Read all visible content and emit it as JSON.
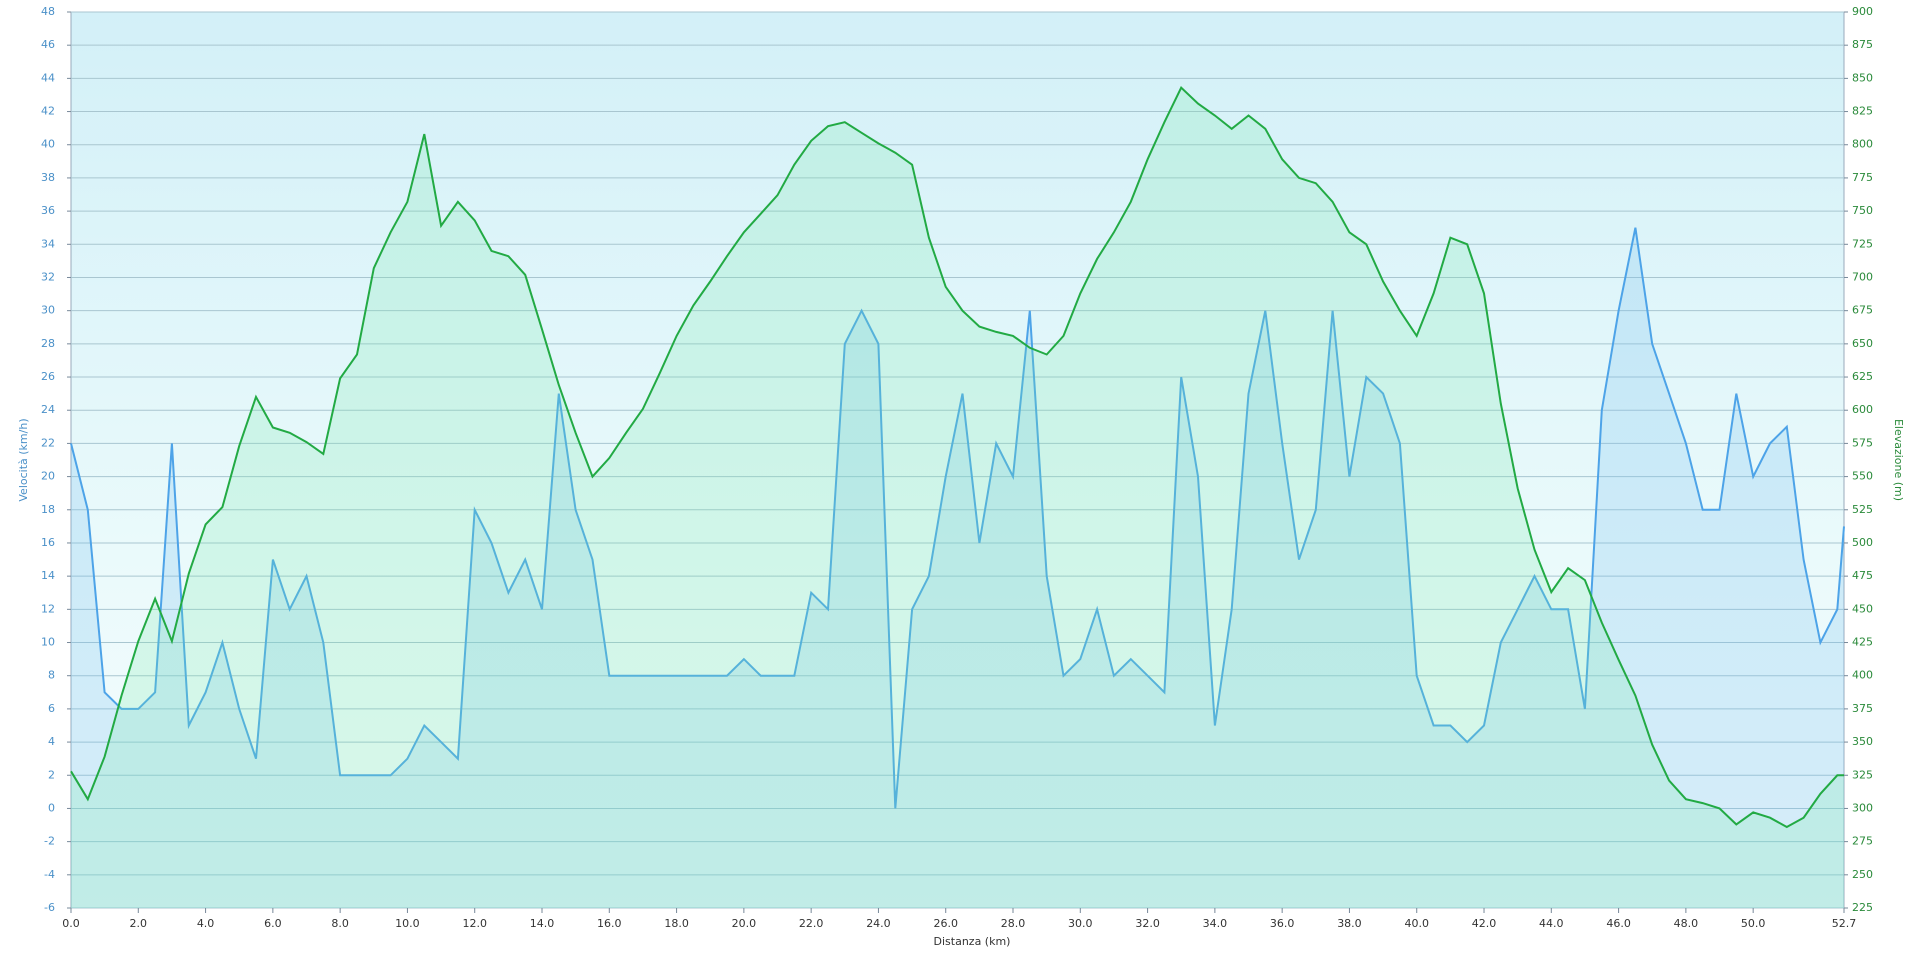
{
  "chart_data": {
    "type": "line",
    "xlabel": "Distanza  (km)",
    "ylabel": "Velocità (km/h)",
    "y2label": "Elevazione (m)",
    "xlim": [
      0,
      52.7
    ],
    "ylim": [
      -6,
      48
    ],
    "y2lim": [
      225,
      900
    ],
    "xticks": [
      {
        "value": 0,
        "label": "0.0"
      },
      {
        "value": 2,
        "label": "2.0"
      },
      {
        "value": 4,
        "label": "4.0"
      },
      {
        "value": 6,
        "label": "6.0"
      },
      {
        "value": 8,
        "label": "8.0"
      },
      {
        "value": 10,
        "label": "10.0"
      },
      {
        "value": 12,
        "label": "12.0"
      },
      {
        "value": 14,
        "label": "14.0"
      },
      {
        "value": 16,
        "label": "16.0"
      },
      {
        "value": 18,
        "label": "18.0"
      },
      {
        "value": 20,
        "label": "20.0"
      },
      {
        "value": 22,
        "label": "22.0"
      },
      {
        "value": 24,
        "label": "24.0"
      },
      {
        "value": 26,
        "label": "26.0"
      },
      {
        "value": 28,
        "label": "28.0"
      },
      {
        "value": 30,
        "label": "30.0"
      },
      {
        "value": 32,
        "label": "32.0"
      },
      {
        "value": 34,
        "label": "34.0"
      },
      {
        "value": 36,
        "label": "36.0"
      },
      {
        "value": 38,
        "label": "38.0"
      },
      {
        "value": 40,
        "label": "40.0"
      },
      {
        "value": 42,
        "label": "42.0"
      },
      {
        "value": 44,
        "label": "44.0"
      },
      {
        "value": 46,
        "label": "46.0"
      },
      {
        "value": 48,
        "label": "48.0"
      },
      {
        "value": 50,
        "label": "50.0"
      },
      {
        "value": 52.7,
        "label": "52.7"
      }
    ],
    "yticks": [
      -6,
      -4,
      -2,
      0,
      2,
      4,
      6,
      8,
      10,
      12,
      14,
      16,
      18,
      20,
      22,
      24,
      26,
      28,
      30,
      32,
      34,
      36,
      38,
      40,
      42,
      44,
      46,
      48
    ],
    "y2ticks": [
      225,
      250,
      275,
      300,
      325,
      350,
      375,
      400,
      425,
      450,
      475,
      500,
      525,
      550,
      575,
      600,
      625,
      650,
      675,
      700,
      725,
      750,
      775,
      800,
      825,
      850,
      875,
      900
    ],
    "grid": true,
    "x": [
      0,
      0.5,
      1,
      1.5,
      2,
      2.5,
      3,
      3.5,
      4,
      4.5,
      5,
      5.5,
      6,
      6.5,
      7,
      7.5,
      8,
      8.5,
      9,
      9.5,
      10,
      10.5,
      11,
      11.5,
      12,
      12.5,
      13,
      13.5,
      14,
      14.5,
      15,
      15.5,
      16,
      16.5,
      17,
      17.5,
      18,
      18.5,
      19,
      19.5,
      20,
      20.5,
      21,
      21.5,
      22,
      22.5,
      23,
      23.5,
      24,
      24.5,
      25,
      25.5,
      26,
      26.5,
      27,
      27.5,
      28,
      28.5,
      29,
      29.5,
      30,
      30.5,
      31,
      31.5,
      32,
      32.5,
      33,
      33.5,
      34,
      34.5,
      35,
      35.5,
      36,
      36.5,
      37,
      37.5,
      38,
      38.5,
      39,
      39.5,
      40,
      40.5,
      41,
      41.5,
      42,
      42.5,
      43,
      43.5,
      44,
      44.5,
      45,
      45.5,
      46,
      46.5,
      47,
      47.5,
      48,
      48.5,
      49,
      49.5,
      50,
      50.5,
      51,
      51.5,
      52,
      52.5,
      52.7
    ],
    "series": [
      {
        "color": "#4da3e8",
        "axis": "y",
        "values": [
          22,
          18,
          7,
          6,
          6,
          7,
          22,
          5,
          7,
          10,
          6,
          3,
          15,
          12,
          14,
          10,
          2,
          2,
          2,
          2,
          3,
          5,
          4,
          3,
          18,
          16,
          13,
          15,
          12,
          25,
          18,
          15,
          8,
          8,
          8,
          8,
          8,
          8,
          8,
          8,
          9,
          8,
          8,
          8,
          13,
          12,
          28,
          30,
          28,
          0,
          12,
          14,
          20,
          25,
          16,
          22,
          20,
          30,
          14,
          8,
          9,
          12,
          8,
          9,
          8,
          7,
          26,
          20,
          5,
          12,
          25,
          30,
          22,
          15,
          18,
          30,
          20,
          26,
          25,
          22,
          8,
          5,
          5,
          4,
          5,
          10,
          12,
          14,
          12,
          12,
          6,
          24,
          30,
          35,
          28,
          25,
          22,
          18,
          18,
          25,
          20,
          22,
          23,
          15,
          10,
          12,
          17
        ]
      },
      {
        "color": "#22aa44",
        "axis": "y2",
        "values": [
          328,
          307,
          339,
          385,
          426,
          458,
          426,
          477,
          514,
          527,
          573,
          610,
          587,
          583,
          576,
          567,
          624,
          642,
          707,
          734,
          757,
          808,
          739,
          757,
          743,
          720,
          716,
          702,
          661,
          619,
          583,
          550,
          564,
          583,
          601,
          628,
          656,
          679,
          697,
          716,
          734,
          748,
          762,
          785,
          803,
          814,
          817,
          809,
          801,
          794,
          785,
          730,
          693,
          675,
          663,
          659,
          656,
          647,
          642,
          656,
          688,
          714,
          734,
          757,
          789,
          817,
          843,
          831,
          822,
          812,
          822,
          812,
          789,
          775,
          771,
          757,
          734,
          725,
          697,
          675,
          656,
          688,
          730,
          725,
          688,
          605,
          541,
          495,
          463,
          481,
          472,
          440,
          412,
          385,
          348,
          321,
          307,
          304,
          300,
          288,
          297,
          293,
          286,
          293,
          311,
          325,
          325
        ]
      }
    ]
  }
}
